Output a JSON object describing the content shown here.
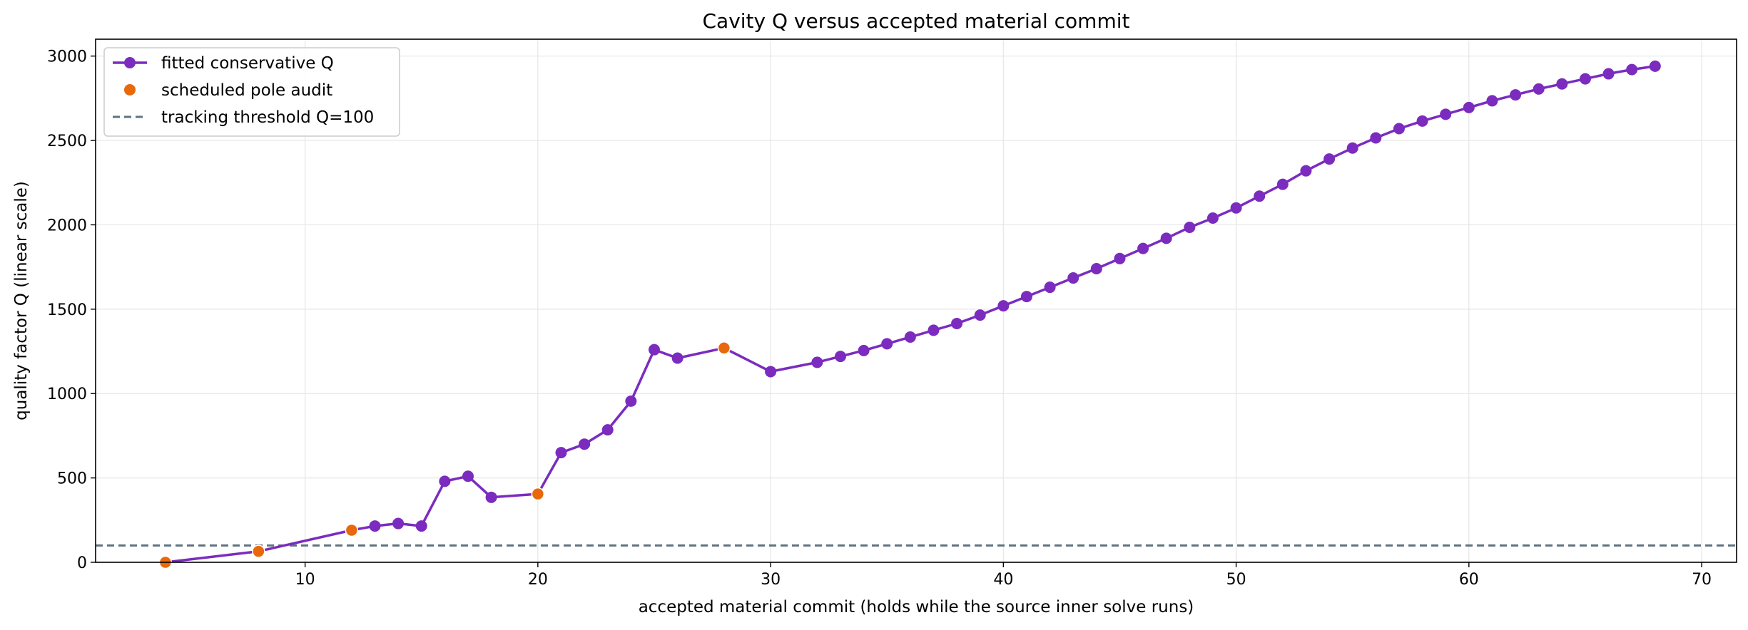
{
  "chart_data": {
    "type": "line",
    "title": "Cavity Q versus accepted material commit",
    "xlabel": "accepted material commit (holds while the source inner solve runs)",
    "ylabel": "quality factor Q (linear scale)",
    "xlim": [
      1,
      71.5
    ],
    "ylim": [
      0,
      3100
    ],
    "xticks": [
      10,
      20,
      30,
      40,
      50,
      60,
      70
    ],
    "yticks": [
      0,
      500,
      1000,
      1500,
      2000,
      2500,
      3000
    ],
    "grid": true,
    "legend_position": "top-left",
    "series": [
      {
        "name": "fitted conservative Q",
        "kind": "line",
        "color": "#7b2cbf",
        "x": [
          4,
          8,
          12,
          13,
          14,
          15,
          16,
          17,
          18,
          20,
          21,
          22,
          23,
          24,
          25,
          26,
          28,
          30,
          32,
          33,
          34,
          35,
          36,
          37,
          38,
          39,
          40,
          41,
          42,
          43,
          44,
          45,
          46,
          47,
          48,
          49,
          50,
          51,
          52,
          53,
          54,
          55,
          56,
          57,
          58,
          59,
          60,
          61,
          62,
          63,
          64,
          65,
          66,
          67,
          68
        ],
        "y": [
          0,
          65,
          190,
          215,
          230,
          215,
          480,
          510,
          385,
          405,
          650,
          700,
          785,
          955,
          1260,
          1210,
          1270,
          1130,
          1185,
          1220,
          1255,
          1295,
          1335,
          1375,
          1415,
          1465,
          1520,
          1575,
          1630,
          1685,
          1740,
          1800,
          1860,
          1920,
          1985,
          2040,
          2100,
          2170,
          2240,
          2320,
          2390,
          2455,
          2515,
          2570,
          2615,
          2655,
          2695,
          2735,
          2770,
          2805,
          2835,
          2865,
          2895,
          2920,
          2940
        ]
      },
      {
        "name": "scheduled pole audit",
        "kind": "scatter",
        "color": "#e8680c",
        "x": [
          4,
          8,
          12,
          20,
          28
        ],
        "y": [
          0,
          65,
          190,
          405,
          1270
        ]
      },
      {
        "name": "tracking threshold Q=100",
        "kind": "hline",
        "color": "#5f7380",
        "y": 100
      }
    ]
  }
}
